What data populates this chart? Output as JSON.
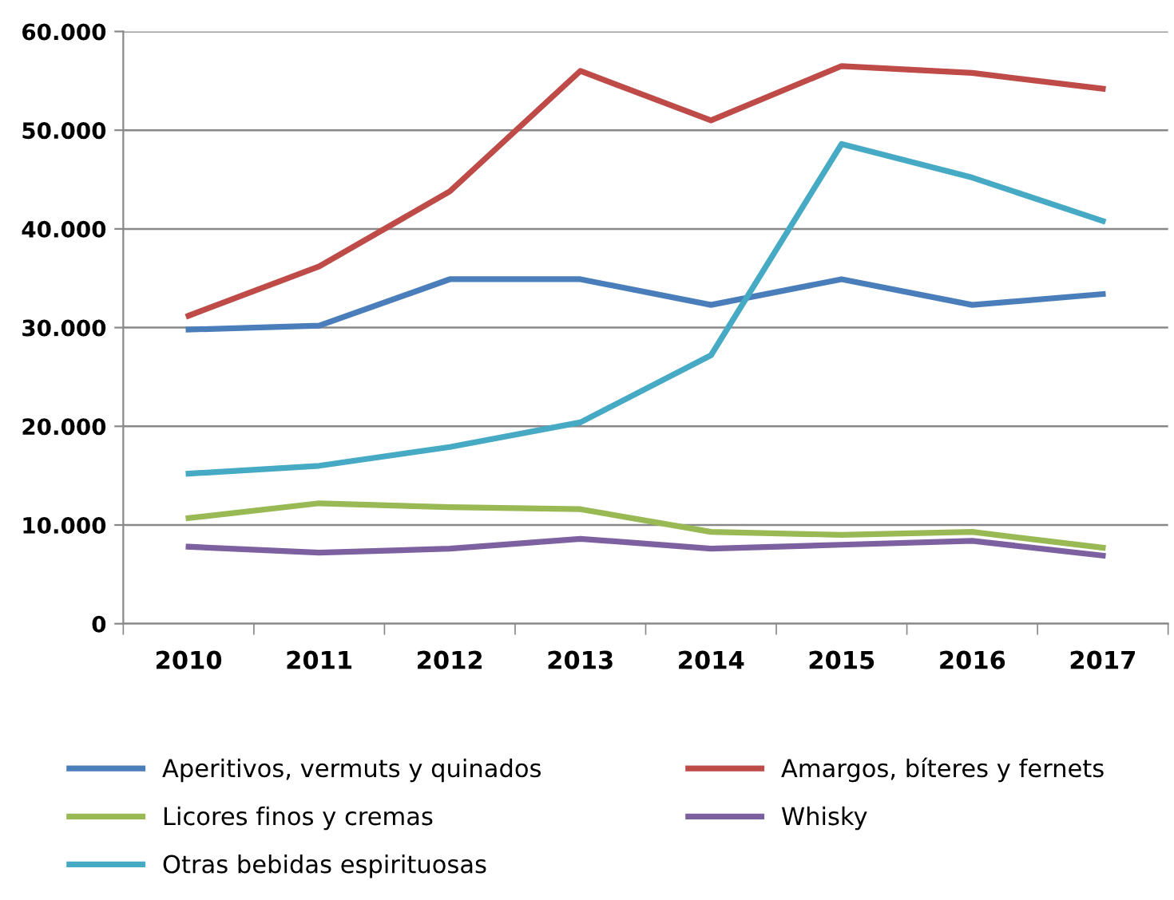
{
  "chart_data": {
    "type": "line",
    "categories": [
      "2010",
      "2011",
      "2012",
      "2013",
      "2014",
      "2015",
      "2016",
      "2017"
    ],
    "series": [
      {
        "name": "Aperitivos, vermuts y quinados",
        "color": "#4a7ebb",
        "values": [
          29800,
          30200,
          34900,
          34900,
          32300,
          34900,
          32300,
          33400
        ]
      },
      {
        "name": "Amargos, bíteres y fernets",
        "color": "#be4b48",
        "values": [
          31200,
          36200,
          43800,
          56000,
          51000,
          56500,
          55800,
          54200
        ]
      },
      {
        "name": "Licores finos y cremas",
        "color": "#98b954",
        "values": [
          10700,
          12200,
          11800,
          11600,
          9300,
          9000,
          9300,
          7700
        ]
      },
      {
        "name": "Whisky",
        "color": "#7d60a0",
        "values": [
          7800,
          7200,
          7600,
          8600,
          7600,
          8000,
          8400,
          6900
        ]
      },
      {
        "name": "Otras bebidas espirituosas",
        "color": "#46aac5",
        "values": [
          15200,
          16000,
          17900,
          20400,
          27200,
          48600,
          45200,
          40800
        ]
      }
    ],
    "ylim": [
      0,
      60000
    ],
    "yticks": [
      {
        "value": 0,
        "label": "0"
      },
      {
        "value": 10000,
        "label": "10.000"
      },
      {
        "value": 20000,
        "label": "20.000"
      },
      {
        "value": 30000,
        "label": "30.000"
      },
      {
        "value": 40000,
        "label": "40.000"
      },
      {
        "value": 50000,
        "label": "50.000"
      },
      {
        "value": 60000,
        "label": "60.000"
      }
    ],
    "grid": "y",
    "legend": "bottom",
    "marker": "none",
    "line_style": "solid"
  }
}
